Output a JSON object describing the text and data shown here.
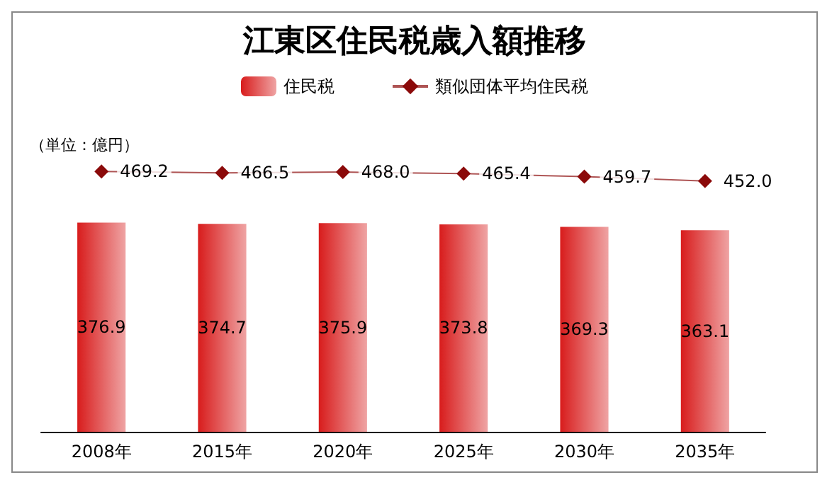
{
  "chart_data": {
    "type": "bar",
    "title": "江東区住民税歳入額推移",
    "ylabel": "（単位：億円）",
    "categories": [
      "2008年",
      "2015年",
      "2020年",
      "2025年",
      "2030年",
      "2035年"
    ],
    "series": [
      {
        "name": "住民税",
        "color": "#d81c1c",
        "values": [
          376.9,
          374.7,
          375.9,
          373.8,
          369.3,
          363.1
        ],
        "value_labels": [
          "376.9",
          "374.7",
          "375.9",
          "373.8",
          "369.3",
          "363.1"
        ]
      },
      {
        "name": "類似団体平均住民税",
        "type": "line",
        "color": "#8b0a0a",
        "marker": "diamond",
        "values": [
          469.2,
          466.5,
          468.0,
          465.4,
          459.7,
          452.0
        ],
        "value_labels": [
          "469.2",
          "466.5",
          "468.0",
          "465.4",
          "459.7",
          "452.0"
        ]
      }
    ],
    "tick_labels": "x",
    "legend": "top",
    "grid": false
  }
}
